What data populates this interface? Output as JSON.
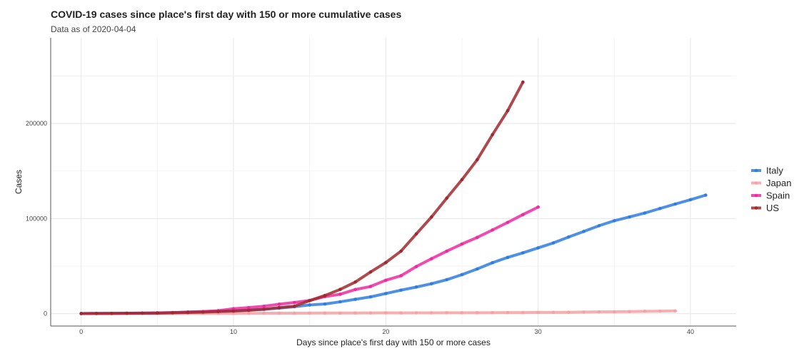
{
  "chart_data": {
    "type": "line",
    "title": "COVID-19 cases since place's first day with 150 or more cumulative cases",
    "subtitle": "Data as of 2020-04-04",
    "xlabel": "Days since place's first day with 150 or more cases",
    "ylabel": "Cases",
    "xlim": [
      -2,
      43
    ],
    "ylim": [
      -13000,
      290000
    ],
    "x_ticks": [
      0,
      10,
      20,
      30,
      40
    ],
    "y_ticks": [
      0,
      100000,
      200000
    ],
    "x_tick_labels": [
      "0",
      "10",
      "20",
      "30",
      "40"
    ],
    "y_tick_labels": [
      "0",
      "100000",
      "200000"
    ],
    "grid": true,
    "legend_position": "right",
    "series": [
      {
        "name": "Italy",
        "color": "#2f7de0",
        "x": [
          0,
          1,
          2,
          3,
          4,
          5,
          6,
          7,
          8,
          9,
          10,
          11,
          12,
          13,
          14,
          15,
          16,
          17,
          18,
          19,
          20,
          21,
          22,
          23,
          24,
          25,
          26,
          27,
          28,
          29,
          30,
          31,
          32,
          33,
          34,
          35,
          36,
          37,
          38,
          39,
          40,
          41
        ],
        "y": [
          155,
          229,
          322,
          453,
          655,
          888,
          1128,
          1694,
          2036,
          2502,
          3089,
          3858,
          4636,
          5883,
          7375,
          9172,
          10149,
          12462,
          15113,
          17660,
          21157,
          24747,
          27980,
          31506,
          35713,
          41035,
          47021,
          53578,
          59138,
          63927,
          69176,
          74386,
          80589,
          86498,
          92472,
          97689,
          101739,
          105792,
          110574,
          115242,
          119827,
          124632
        ]
      },
      {
        "name": "Japan",
        "color": "#f7a1a4",
        "x": [
          0,
          1,
          2,
          3,
          4,
          5,
          6,
          7,
          8,
          9,
          10,
          11,
          12,
          13,
          14,
          15,
          16,
          17,
          18,
          19,
          20,
          21,
          22,
          23,
          24,
          25,
          26,
          27,
          28,
          29,
          30,
          31,
          32,
          33,
          34,
          35,
          36,
          37,
          38,
          39
        ],
        "y": [
          159,
          170,
          189,
          214,
          228,
          241,
          256,
          274,
          293,
          331,
          360,
          420,
          461,
          502,
          511,
          581,
          639,
          639,
          701,
          773,
          839,
          825,
          878,
          889,
          924,
          963,
          1007,
          1086,
          1128,
          1193,
          1307,
          1387,
          1468,
          1693,
          1866,
          1953,
          2178,
          2495,
          2617,
          2935
        ]
      },
      {
        "name": "Spain",
        "color": "#ee2aa0",
        "x": [
          0,
          1,
          2,
          3,
          4,
          5,
          6,
          7,
          8,
          9,
          10,
          11,
          12,
          13,
          14,
          15,
          16,
          17,
          18,
          19,
          20,
          21,
          22,
          23,
          24,
          25,
          26,
          27,
          28,
          29,
          30
        ],
        "y": [
          165,
          222,
          259,
          400,
          500,
          673,
          1073,
          1695,
          2277,
          3146,
          5232,
          6391,
          7798,
          9942,
          11748,
          13910,
          17963,
          20410,
          25374,
          28603,
          35136,
          39885,
          49515,
          57786,
          65719,
          73235,
          80110,
          87956,
          95923,
          104118,
          112065
        ]
      },
      {
        "name": "US",
        "color": "#a0292e",
        "x": [
          0,
          1,
          2,
          3,
          4,
          5,
          6,
          7,
          8,
          9,
          10,
          11,
          12,
          13,
          14,
          15,
          16,
          17,
          18,
          19,
          20,
          21,
          22,
          23,
          24,
          25,
          26,
          27,
          28,
          29
        ],
        "y": [
          153,
          221,
          278,
          417,
          537,
          605,
          959,
          1281,
          1663,
          2179,
          2727,
          3499,
          4632,
          6421,
          7783,
          13677,
          19100,
          25489,
          33276,
          43847,
          53740,
          65778,
          83836,
          101657,
          121478,
          140886,
          161807,
          188172,
          213372,
          243453
        ]
      }
    ]
  }
}
